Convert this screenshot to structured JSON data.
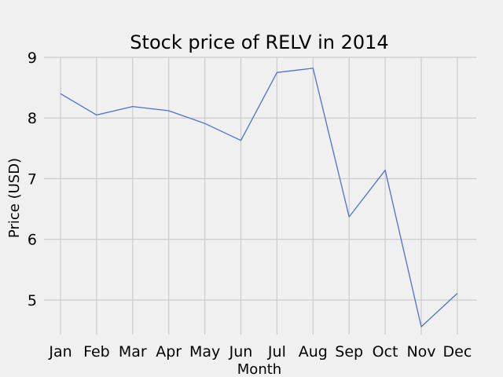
{
  "chart_data": {
    "type": "line",
    "title": "Stock price of RELV in 2014",
    "xlabel": "Month",
    "ylabel": "Price (USD)",
    "categories": [
      "Jan",
      "Feb",
      "Mar",
      "Apr",
      "May",
      "Jun",
      "Jul",
      "Aug",
      "Sep",
      "Oct",
      "Nov",
      "Dec"
    ],
    "series": [
      {
        "values": [
          8.4,
          8.05,
          8.19,
          8.12,
          7.91,
          7.63,
          8.75,
          8.82,
          6.37,
          7.14,
          4.56,
          5.11
        ]
      }
    ],
    "yticks": [
      5,
      6,
      7,
      8,
      9
    ],
    "ylim": [
      4.43,
      9.0
    ],
    "grid": true,
    "line_color": "#4c72d0",
    "background_color": "#f0f0f0",
    "grid_color": "#cbcbcb"
  }
}
